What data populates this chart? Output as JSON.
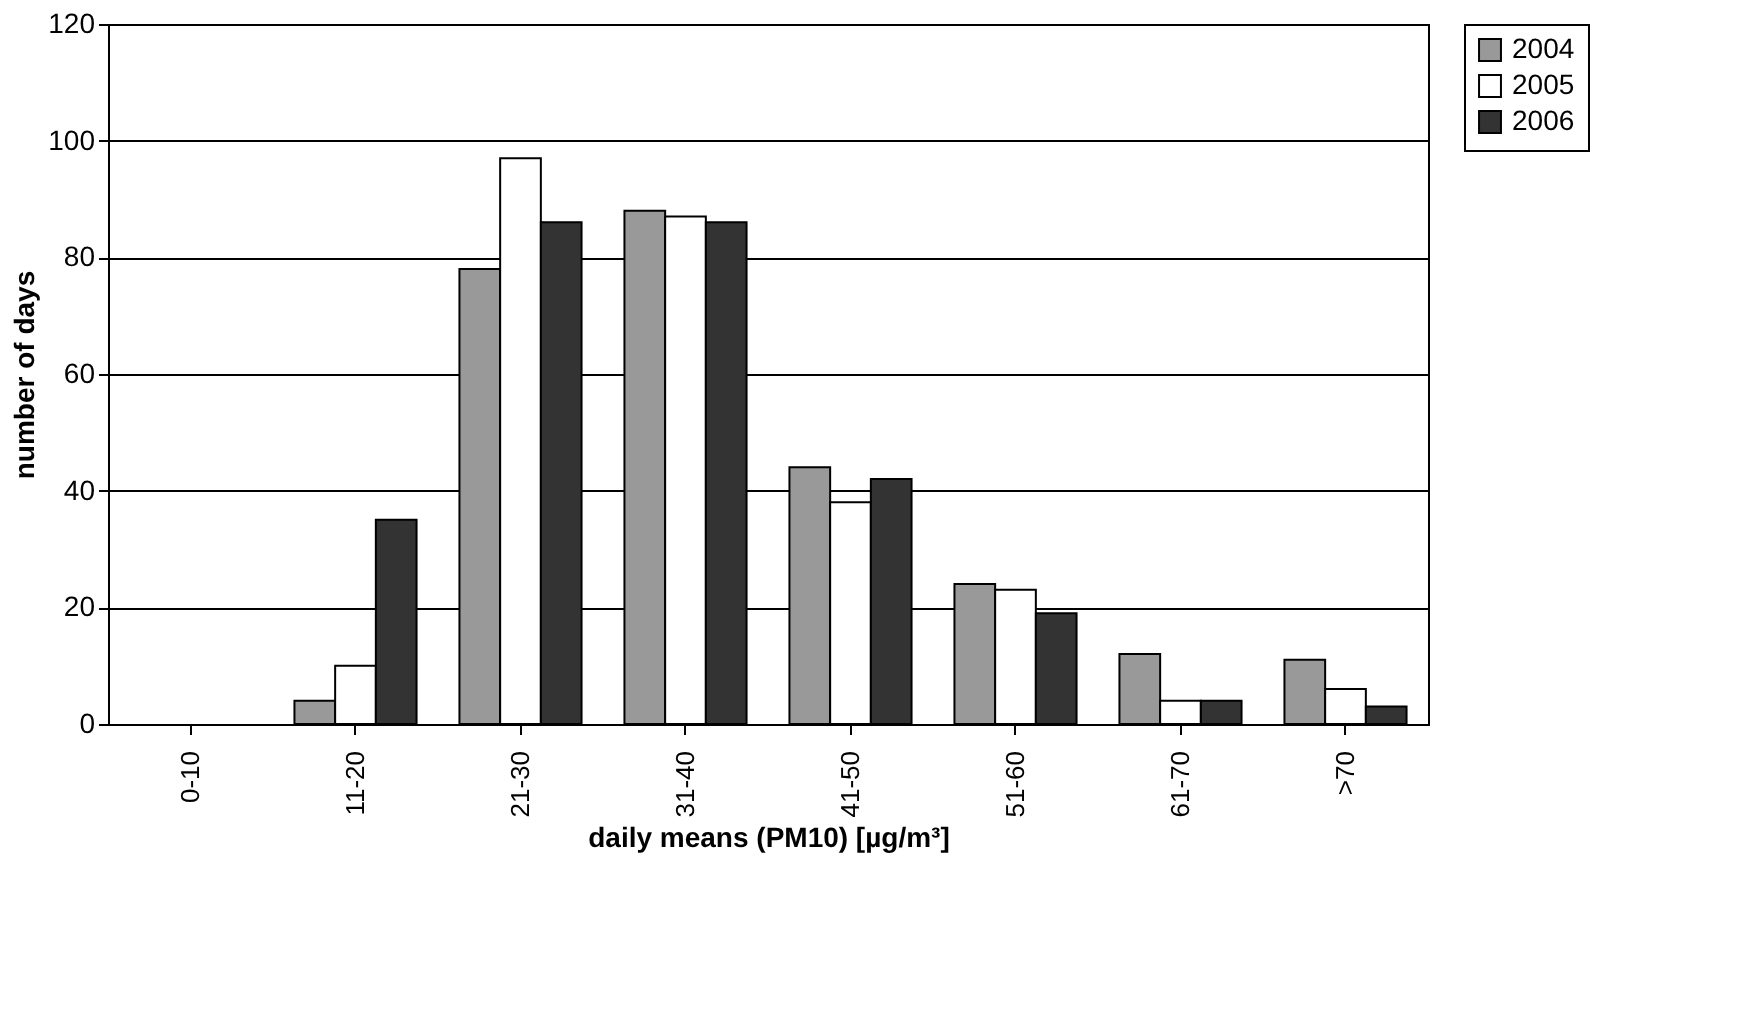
{
  "chart_data": {
    "type": "bar",
    "xlabel": "daily means (PM10)  [µg/m³]",
    "ylabel": "number of days",
    "categories": [
      "0-10",
      "11-20",
      "21-30",
      "31-40",
      "41-50",
      "51-60",
      "61-70",
      ">70"
    ],
    "series": [
      {
        "name": "2004",
        "color": "#999999",
        "values": [
          0,
          4,
          78,
          88,
          44,
          24,
          12,
          11
        ]
      },
      {
        "name": "2005",
        "color": "#ffffff",
        "values": [
          0,
          10,
          97,
          87,
          38,
          23,
          4,
          6
        ]
      },
      {
        "name": "2006",
        "color": "#333333",
        "values": [
          0,
          35,
          86,
          86,
          42,
          19,
          4,
          3
        ]
      }
    ],
    "ylim": [
      0,
      120
    ],
    "yticks": [
      0,
      20,
      40,
      60,
      80,
      100,
      120
    ],
    "grid": "y",
    "legend": "right"
  }
}
